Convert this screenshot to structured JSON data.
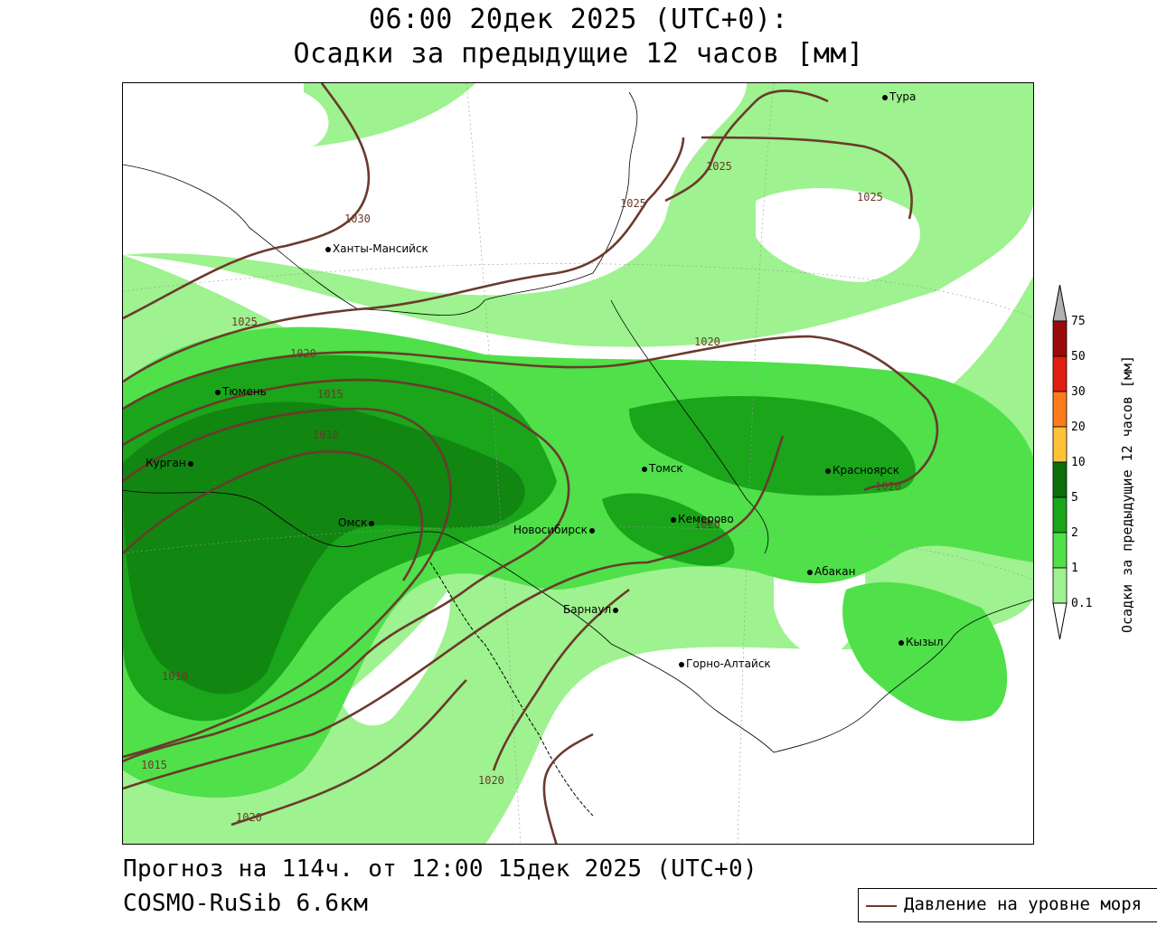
{
  "title": {
    "line1": "06:00 20дек 2025 (UTC+0):",
    "line2": "Осадки за предыдущие 12 часов [мм]"
  },
  "footer": {
    "forecast": "Прогноз на 114ч. от 12:00 15дек 2025 (UTC+0)",
    "model": "COSMO-RuSib 6.6км"
  },
  "legend": {
    "pressure_label": "Давление на уровне моря",
    "pressure_color": "#6b3a2c"
  },
  "colorbar": {
    "title": "Осадки за предыдущие 12 часов [мм]",
    "levels": [
      "0.1",
      "1",
      "2",
      "5",
      "10",
      "20",
      "30",
      "50",
      "75"
    ],
    "colors": [
      "#ffffff",
      "#9ef28f",
      "#4fe04a",
      "#1aa51a",
      "#0b6e0b",
      "#ffc33a",
      "#ff7a1a",
      "#e01f10",
      "#9a0a0a",
      "#b0b0b0"
    ]
  },
  "map": {
    "cities": [
      "Тура",
      "Ханты-Мансийск",
      "Тюмень",
      "Курган",
      "Омск",
      "Томск",
      "Красноярск",
      "Новосибирск",
      "Кемерово",
      "Абакан",
      "Барнаул",
      "Кызыл",
      "Горно-Алтайск"
    ],
    "isobars": [
      "1030",
      "1025",
      "1025",
      "1025",
      "1025",
      "1020",
      "1020",
      "1020",
      "1020",
      "1020",
      "1015",
      "1015",
      "1010",
      "1010",
      "1020"
    ],
    "precip_colors": {
      "light": "#9ef28f",
      "medium": "#4fe04a",
      "heavy": "#1aa51a",
      "very_heavy": "#0b6e0b"
    }
  }
}
